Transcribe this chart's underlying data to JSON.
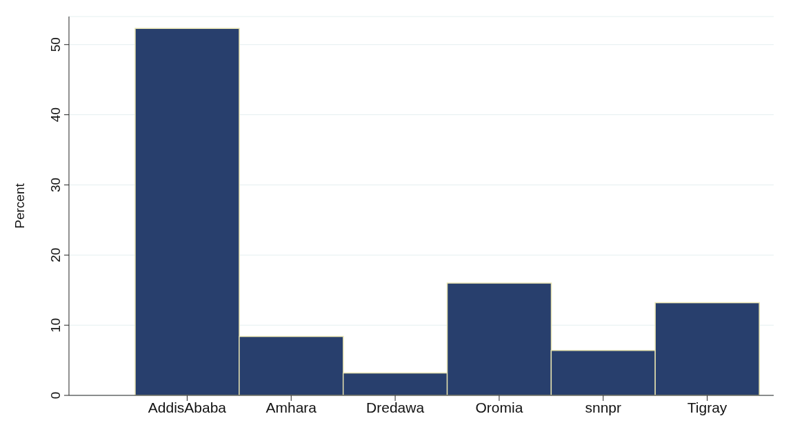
{
  "chart_data": {
    "type": "bar",
    "ylabel": "Percent",
    "categories": [
      "AddisAbaba",
      "Amhara",
      "Dredawa",
      "Oromia",
      "snnpr",
      "Tigray"
    ],
    "values": [
      52.3,
      8.4,
      3.2,
      16.0,
      6.4,
      13.2
    ],
    "color": "#283f6d",
    "ylim": [
      0,
      54
    ],
    "yticks": [
      0,
      10,
      20,
      30,
      40,
      50
    ],
    "grid": "y"
  }
}
